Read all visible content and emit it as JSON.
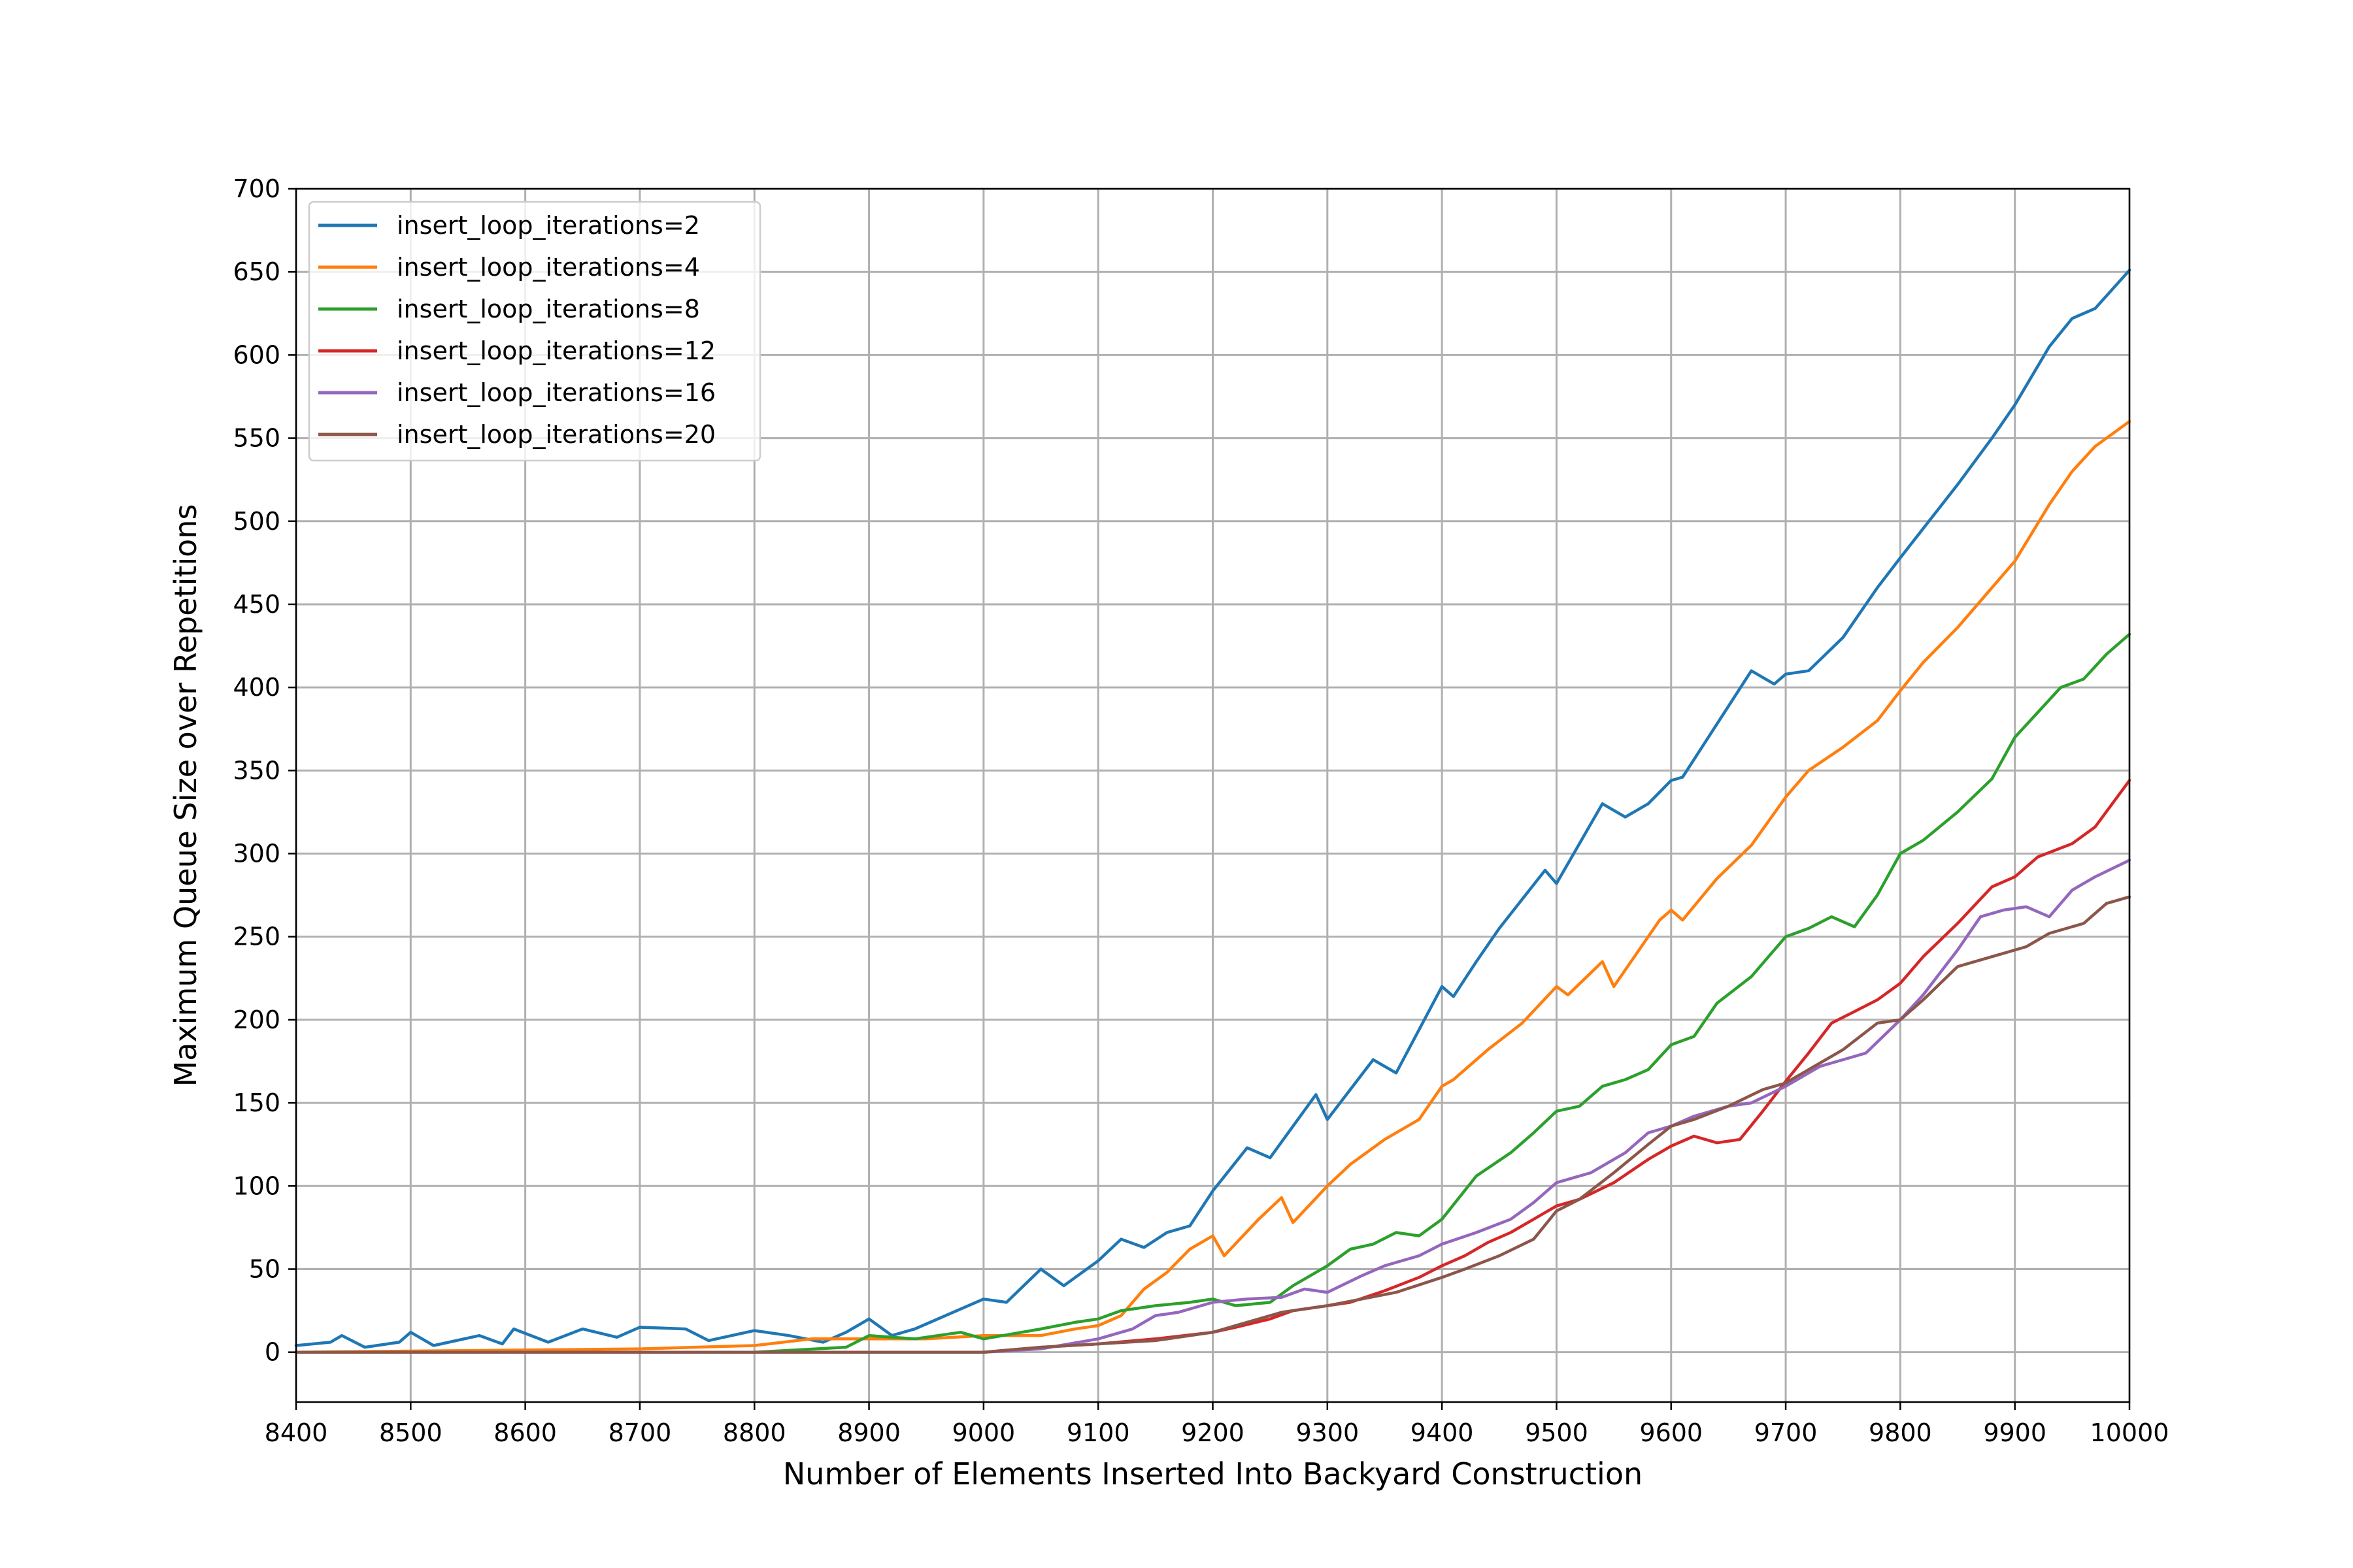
{
  "chart_data": {
    "type": "line",
    "title": "",
    "xlabel": "Number of Elements Inserted Into Backyard Construction",
    "ylabel": "Maximum Queue Size over Repetitions",
    "xlim": [
      8400,
      10000
    ],
    "ylim": [
      -30,
      700
    ],
    "xticks": [
      8400,
      8500,
      8600,
      8700,
      8800,
      8900,
      9000,
      9100,
      9200,
      9300,
      9400,
      9500,
      9600,
      9700,
      9800,
      9900,
      10000
    ],
    "yticks": [
      0,
      50,
      100,
      150,
      200,
      250,
      300,
      350,
      400,
      450,
      500,
      550,
      600,
      650,
      700
    ],
    "grid": true,
    "legend_position": "upper-left",
    "series": [
      {
        "name": "insert_loop_iterations=2",
        "color": "#1f77b4",
        "points": [
          [
            8400,
            4
          ],
          [
            8430,
            6
          ],
          [
            8440,
            10
          ],
          [
            8460,
            3
          ],
          [
            8490,
            6
          ],
          [
            8500,
            12
          ],
          [
            8520,
            4
          ],
          [
            8560,
            10
          ],
          [
            8580,
            5
          ],
          [
            8590,
            14
          ],
          [
            8620,
            6
          ],
          [
            8650,
            14
          ],
          [
            8680,
            9
          ],
          [
            8700,
            15
          ],
          [
            8740,
            14
          ],
          [
            8760,
            7
          ],
          [
            8800,
            13
          ],
          [
            8830,
            10
          ],
          [
            8860,
            6
          ],
          [
            8880,
            12
          ],
          [
            8900,
            20
          ],
          [
            8920,
            10
          ],
          [
            8940,
            14
          ],
          [
            9000,
            32
          ],
          [
            9020,
            30
          ],
          [
            9050,
            50
          ],
          [
            9070,
            40
          ],
          [
            9100,
            55
          ],
          [
            9120,
            68
          ],
          [
            9140,
            63
          ],
          [
            9160,
            72
          ],
          [
            9180,
            76
          ],
          [
            9200,
            97
          ],
          [
            9230,
            123
          ],
          [
            9250,
            117
          ],
          [
            9290,
            155
          ],
          [
            9300,
            140
          ],
          [
            9340,
            176
          ],
          [
            9360,
            168
          ],
          [
            9400,
            220
          ],
          [
            9410,
            214
          ],
          [
            9430,
            235
          ],
          [
            9450,
            255
          ],
          [
            9490,
            290
          ],
          [
            9500,
            282
          ],
          [
            9540,
            330
          ],
          [
            9560,
            322
          ],
          [
            9580,
            330
          ],
          [
            9600,
            344
          ],
          [
            9610,
            346
          ],
          [
            9640,
            378
          ],
          [
            9670,
            410
          ],
          [
            9690,
            402
          ],
          [
            9700,
            408
          ],
          [
            9720,
            410
          ],
          [
            9750,
            430
          ],
          [
            9780,
            460
          ],
          [
            9800,
            478
          ],
          [
            9850,
            522
          ],
          [
            9880,
            550
          ],
          [
            9900,
            570
          ],
          [
            9930,
            605
          ],
          [
            9950,
            622
          ],
          [
            9970,
            628
          ],
          [
            10000,
            651
          ]
        ]
      },
      {
        "name": "insert_loop_iterations=4",
        "color": "#ff7f0e",
        "points": [
          [
            8400,
            0
          ],
          [
            8700,
            2
          ],
          [
            8800,
            4
          ],
          [
            8850,
            8
          ],
          [
            8900,
            8
          ],
          [
            8950,
            8
          ],
          [
            9000,
            10
          ],
          [
            9050,
            10
          ],
          [
            9080,
            14
          ],
          [
            9100,
            16
          ],
          [
            9120,
            22
          ],
          [
            9140,
            38
          ],
          [
            9160,
            48
          ],
          [
            9180,
            62
          ],
          [
            9200,
            70
          ],
          [
            9210,
            58
          ],
          [
            9240,
            80
          ],
          [
            9260,
            93
          ],
          [
            9270,
            78
          ],
          [
            9300,
            100
          ],
          [
            9320,
            113
          ],
          [
            9350,
            128
          ],
          [
            9380,
            140
          ],
          [
            9400,
            160
          ],
          [
            9410,
            164
          ],
          [
            9440,
            182
          ],
          [
            9470,
            198
          ],
          [
            9500,
            220
          ],
          [
            9510,
            215
          ],
          [
            9540,
            235
          ],
          [
            9550,
            220
          ],
          [
            9590,
            260
          ],
          [
            9600,
            266
          ],
          [
            9610,
            260
          ],
          [
            9640,
            285
          ],
          [
            9670,
            305
          ],
          [
            9700,
            334
          ],
          [
            9720,
            350
          ],
          [
            9750,
            364
          ],
          [
            9780,
            380
          ],
          [
            9800,
            398
          ],
          [
            9820,
            415
          ],
          [
            9850,
            436
          ],
          [
            9880,
            460
          ],
          [
            9900,
            476
          ],
          [
            9930,
            510
          ],
          [
            9950,
            530
          ],
          [
            9970,
            545
          ],
          [
            10000,
            560
          ]
        ]
      },
      {
        "name": "insert_loop_iterations=8",
        "color": "#2ca02c",
        "points": [
          [
            8400,
            0
          ],
          [
            8800,
            0
          ],
          [
            8880,
            3
          ],
          [
            8900,
            10
          ],
          [
            8940,
            8
          ],
          [
            8980,
            12
          ],
          [
            9000,
            8
          ],
          [
            9050,
            14
          ],
          [
            9080,
            18
          ],
          [
            9100,
            20
          ],
          [
            9120,
            25
          ],
          [
            9150,
            28
          ],
          [
            9180,
            30
          ],
          [
            9200,
            32
          ],
          [
            9220,
            28
          ],
          [
            9250,
            30
          ],
          [
            9270,
            40
          ],
          [
            9300,
            52
          ],
          [
            9320,
            62
          ],
          [
            9340,
            65
          ],
          [
            9360,
            72
          ],
          [
            9380,
            70
          ],
          [
            9400,
            80
          ],
          [
            9430,
            106
          ],
          [
            9460,
            120
          ],
          [
            9480,
            132
          ],
          [
            9500,
            145
          ],
          [
            9520,
            148
          ],
          [
            9540,
            160
          ],
          [
            9560,
            164
          ],
          [
            9580,
            170
          ],
          [
            9600,
            185
          ],
          [
            9620,
            190
          ],
          [
            9640,
            210
          ],
          [
            9670,
            226
          ],
          [
            9700,
            250
          ],
          [
            9720,
            255
          ],
          [
            9740,
            262
          ],
          [
            9760,
            256
          ],
          [
            9780,
            275
          ],
          [
            9800,
            300
          ],
          [
            9820,
            308
          ],
          [
            9850,
            325
          ],
          [
            9880,
            345
          ],
          [
            9900,
            370
          ],
          [
            9920,
            385
          ],
          [
            9940,
            400
          ],
          [
            9960,
            405
          ],
          [
            9980,
            420
          ],
          [
            10000,
            432
          ]
        ]
      },
      {
        "name": "insert_loop_iterations=12",
        "color": "#d62728",
        "points": [
          [
            8400,
            0
          ],
          [
            9000,
            0
          ],
          [
            9050,
            3
          ],
          [
            9100,
            5
          ],
          [
            9150,
            8
          ],
          [
            9200,
            12
          ],
          [
            9220,
            15
          ],
          [
            9250,
            20
          ],
          [
            9270,
            25
          ],
          [
            9300,
            28
          ],
          [
            9320,
            30
          ],
          [
            9350,
            37
          ],
          [
            9380,
            45
          ],
          [
            9400,
            52
          ],
          [
            9420,
            58
          ],
          [
            9440,
            66
          ],
          [
            9460,
            72
          ],
          [
            9480,
            80
          ],
          [
            9500,
            88
          ],
          [
            9520,
            92
          ],
          [
            9550,
            102
          ],
          [
            9580,
            116
          ],
          [
            9600,
            124
          ],
          [
            9620,
            130
          ],
          [
            9640,
            126
          ],
          [
            9660,
            128
          ],
          [
            9680,
            145
          ],
          [
            9700,
            163
          ],
          [
            9720,
            180
          ],
          [
            9740,
            198
          ],
          [
            9760,
            205
          ],
          [
            9780,
            212
          ],
          [
            9800,
            222
          ],
          [
            9820,
            238
          ],
          [
            9850,
            258
          ],
          [
            9880,
            280
          ],
          [
            9900,
            286
          ],
          [
            9920,
            298
          ],
          [
            9950,
            306
          ],
          [
            9970,
            316
          ],
          [
            10000,
            344
          ]
        ]
      },
      {
        "name": "insert_loop_iterations=16",
        "color": "#9467bd",
        "points": [
          [
            8400,
            0
          ],
          [
            9000,
            0
          ],
          [
            9050,
            2
          ],
          [
            9100,
            8
          ],
          [
            9130,
            14
          ],
          [
            9150,
            22
          ],
          [
            9170,
            24
          ],
          [
            9200,
            30
          ],
          [
            9230,
            32
          ],
          [
            9260,
            33
          ],
          [
            9280,
            38
          ],
          [
            9300,
            36
          ],
          [
            9330,
            46
          ],
          [
            9350,
            52
          ],
          [
            9380,
            58
          ],
          [
            9400,
            65
          ],
          [
            9430,
            72
          ],
          [
            9460,
            80
          ],
          [
            9480,
            90
          ],
          [
            9500,
            102
          ],
          [
            9530,
            108
          ],
          [
            9560,
            120
          ],
          [
            9580,
            132
          ],
          [
            9600,
            136
          ],
          [
            9620,
            142
          ],
          [
            9650,
            148
          ],
          [
            9670,
            150
          ],
          [
            9700,
            160
          ],
          [
            9730,
            172
          ],
          [
            9750,
            176
          ],
          [
            9770,
            180
          ],
          [
            9800,
            200
          ],
          [
            9820,
            215
          ],
          [
            9850,
            242
          ],
          [
            9870,
            262
          ],
          [
            9890,
            266
          ],
          [
            9910,
            268
          ],
          [
            9930,
            262
          ],
          [
            9950,
            278
          ],
          [
            9970,
            286
          ],
          [
            10000,
            296
          ]
        ]
      },
      {
        "name": "insert_loop_iterations=20",
        "color": "#8c564b",
        "points": [
          [
            8400,
            0
          ],
          [
            9000,
            0
          ],
          [
            9050,
            3
          ],
          [
            9100,
            5
          ],
          [
            9150,
            7
          ],
          [
            9200,
            12
          ],
          [
            9230,
            18
          ],
          [
            9260,
            24
          ],
          [
            9300,
            28
          ],
          [
            9330,
            32
          ],
          [
            9360,
            36
          ],
          [
            9400,
            45
          ],
          [
            9420,
            50
          ],
          [
            9450,
            58
          ],
          [
            9480,
            68
          ],
          [
            9500,
            85
          ],
          [
            9520,
            92
          ],
          [
            9550,
            108
          ],
          [
            9580,
            125
          ],
          [
            9600,
            136
          ],
          [
            9620,
            140
          ],
          [
            9650,
            148
          ],
          [
            9680,
            158
          ],
          [
            9700,
            162
          ],
          [
            9720,
            170
          ],
          [
            9750,
            182
          ],
          [
            9780,
            198
          ],
          [
            9800,
            200
          ],
          [
            9820,
            212
          ],
          [
            9850,
            232
          ],
          [
            9870,
            236
          ],
          [
            9890,
            240
          ],
          [
            9910,
            244
          ],
          [
            9930,
            252
          ],
          [
            9960,
            258
          ],
          [
            9980,
            270
          ],
          [
            10000,
            274
          ]
        ]
      }
    ]
  }
}
